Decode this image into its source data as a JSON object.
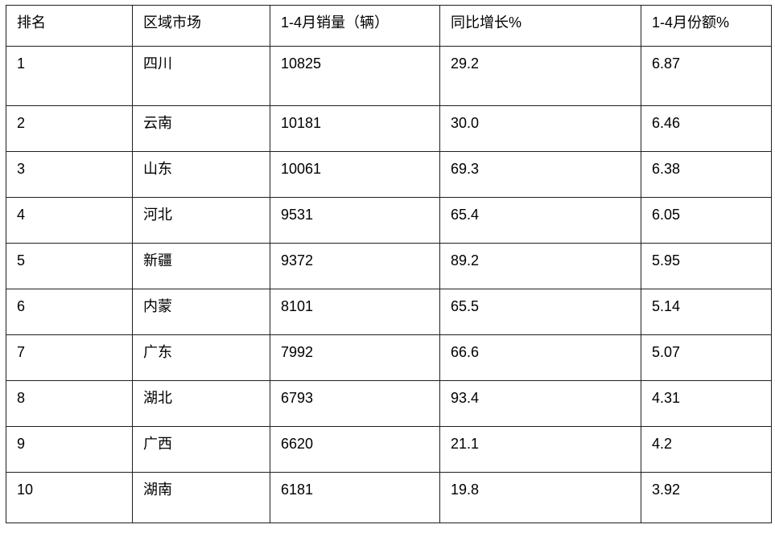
{
  "chart_data": {
    "type": "table",
    "title": "",
    "columns": [
      "排名",
      "区域市场",
      "1-4月销量（辆）",
      "同比增长%",
      "1-4月份额%"
    ],
    "rows": [
      [
        "1",
        "四川",
        "10825",
        "29.2",
        "6.87"
      ],
      [
        "2",
        "云南",
        "10181",
        "30.0",
        "6.46"
      ],
      [
        "3",
        "山东",
        "10061",
        "69.3",
        "6.38"
      ],
      [
        "4",
        "河北",
        "9531",
        "65.4",
        "6.05"
      ],
      [
        "5",
        "新疆",
        "9372",
        "89.2",
        "5.95"
      ],
      [
        "6",
        "内蒙",
        "8101",
        "65.5",
        "5.14"
      ],
      [
        "7",
        "广东",
        "7992",
        "66.6",
        "5.07"
      ],
      [
        "8",
        "湖北",
        "6793",
        "93.4",
        "4.31"
      ],
      [
        "9",
        "广西",
        "6620",
        "21.1",
        "4.2"
      ],
      [
        "10",
        "湖南",
        "6181",
        "19.8",
        "3.92"
      ]
    ],
    "columns_semantic": {
      "rank": "排名",
      "region_market": "区域市场",
      "sales_jan_apr_units": "1-4月销量（辆）",
      "yoy_growth_pct": "同比增长%",
      "share_jan_apr_pct": "1-4月份额%"
    }
  },
  "colors": {
    "border": "#1f1f1f",
    "text": "#000000",
    "background": "#ffffff"
  }
}
